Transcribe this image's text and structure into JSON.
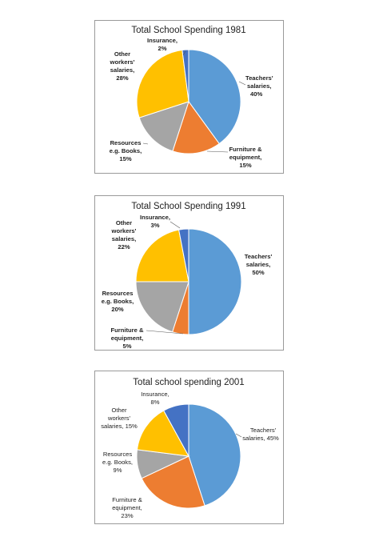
{
  "chart_data": [
    {
      "type": "pie",
      "title": "Total School Spending 1981",
      "slices": [
        {
          "label": "Teachers' salaries",
          "value": 40,
          "pct_label": "40%",
          "color": "#5B9BD5"
        },
        {
          "label": "Furniture & equipment",
          "value": 15,
          "pct_label": "15%",
          "color": "#ED7D31"
        },
        {
          "label": "Resources e.g. Books",
          "value": 15,
          "pct_label": "15%",
          "color": "#A5A5A5"
        },
        {
          "label": "Other workers' salaries",
          "value": 28,
          "pct_label": "28%",
          "color": "#FFC000"
        },
        {
          "label": "Insurance",
          "value": 2,
          "pct_label": "2%",
          "color": "#4472C4"
        }
      ]
    },
    {
      "type": "pie",
      "title": "Total School Spending 1991",
      "slices": [
        {
          "label": "Teachers' salaries",
          "value": 50,
          "pct_label": "50%",
          "color": "#5B9BD5"
        },
        {
          "label": "Furniture & equipment",
          "value": 5,
          "pct_label": "5%",
          "color": "#ED7D31"
        },
        {
          "label": "Resources e.g. Books",
          "value": 20,
          "pct_label": "20%",
          "color": "#A5A5A5"
        },
        {
          "label": "Other workers' salaries",
          "value": 22,
          "pct_label": "22%",
          "color": "#FFC000"
        },
        {
          "label": "Insurance",
          "value": 3,
          "pct_label": "3%",
          "color": "#4472C4"
        }
      ]
    },
    {
      "type": "pie",
      "title": "Total school spending 2001",
      "slices": [
        {
          "label": "Teachers' salaries",
          "value": 45,
          "pct_label": "45%",
          "color": "#5B9BD5"
        },
        {
          "label": "Furniture & equipment",
          "value": 23,
          "pct_label": "23%",
          "color": "#ED7D31"
        },
        {
          "label": "Resources e.g. Books",
          "value": 9,
          "pct_label": "9%",
          "color": "#A5A5A5"
        },
        {
          "label": "Other workers' salaries",
          "value": 15,
          "pct_label": "15%",
          "color": "#FFC000"
        },
        {
          "label": "Insurance",
          "value": 8,
          "pct_label": "8%",
          "color": "#4472C4"
        }
      ]
    }
  ]
}
